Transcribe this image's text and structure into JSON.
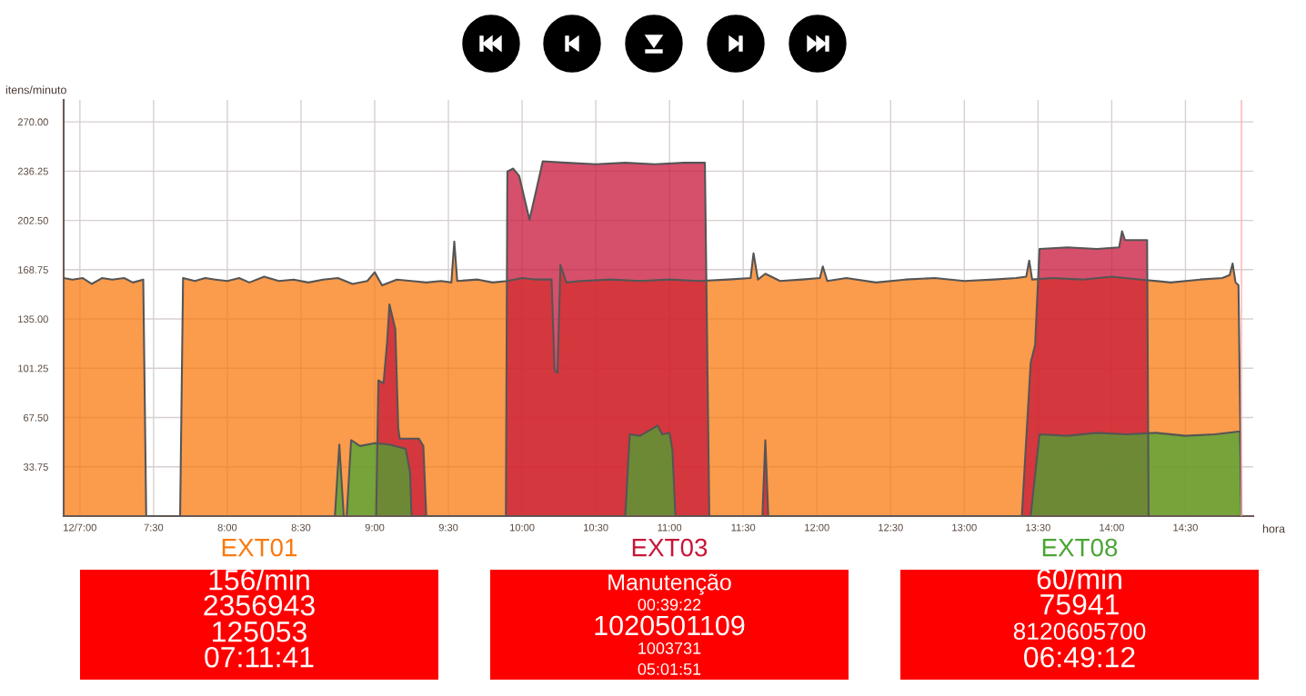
{
  "chart_data": [
    {
      "type": "area",
      "xlabel": "hora",
      "ylabel": "itens/minuto",
      "grid": true,
      "xlim": [
        6.89,
        14.96
      ],
      "ylim": [
        0,
        285
      ],
      "xticks": [
        {
          "value": 7,
          "label": "12/7:00"
        },
        {
          "value": 7.5,
          "label": "7:30"
        },
        {
          "value": 8,
          "label": "8:00"
        },
        {
          "value": 8.5,
          "label": "8:30"
        },
        {
          "value": 9,
          "label": "9:00"
        },
        {
          "value": 9.5,
          "label": "9:30"
        },
        {
          "value": 10,
          "label": "10:00"
        },
        {
          "value": 10.5,
          "label": "10:30"
        },
        {
          "value": 11,
          "label": "11:00"
        },
        {
          "value": 11.5,
          "label": "11:30"
        },
        {
          "value": 12,
          "label": "12:00"
        },
        {
          "value": 12.5,
          "label": "12:30"
        },
        {
          "value": 13,
          "label": "13:00"
        },
        {
          "value": 13.5,
          "label": "13:30"
        },
        {
          "value": 14,
          "label": "14:00"
        },
        {
          "value": 14.5,
          "label": "14:30"
        }
      ],
      "yticks": [
        {
          "value": 33.75,
          "label": "33.75"
        },
        {
          "value": 67.5,
          "label": "67.50"
        },
        {
          "value": 101.25,
          "label": "101.25"
        },
        {
          "value": 135,
          "label": "135.00"
        },
        {
          "value": 168.75,
          "label": "168.75"
        },
        {
          "value": 202.5,
          "label": "202.50"
        },
        {
          "value": 236.25,
          "label": "236.25"
        },
        {
          "value": 270,
          "label": "270.00"
        }
      ],
      "ref_lines": [
        {
          "axis": "x",
          "value": 14.88,
          "color": "#ffb0b0"
        }
      ],
      "series": [
        {
          "name": "EXT01",
          "color": "#f97a10",
          "x": [
            6.89,
            6.95,
            7.02,
            7.08,
            7.15,
            7.22,
            7.3,
            7.36,
            7.43,
            7.45,
            7.68,
            7.7,
            7.78,
            7.85,
            7.92,
            8.0,
            8.08,
            8.15,
            8.25,
            8.35,
            8.45,
            8.55,
            8.65,
            8.75,
            8.85,
            8.95,
            9.0,
            9.05,
            9.15,
            9.25,
            9.35,
            9.45,
            9.52,
            9.54,
            9.56,
            9.7,
            9.8,
            9.9,
            10.0,
            10.1,
            10.2,
            10.22,
            10.24,
            10.26,
            10.3,
            10.4,
            10.6,
            10.8,
            11.0,
            11.2,
            11.4,
            11.55,
            11.57,
            11.6,
            11.65,
            11.75,
            11.9,
            12.02,
            12.04,
            12.07,
            12.2,
            12.4,
            12.6,
            12.8,
            13.0,
            13.2,
            13.35,
            13.42,
            13.44,
            13.46,
            13.6,
            13.8,
            14.0,
            14.2,
            14.4,
            14.6,
            14.75,
            14.8,
            14.82,
            14.84,
            14.86,
            14.88
          ],
          "values": [
            163,
            162,
            163,
            159,
            163,
            162,
            163,
            160,
            162,
            0,
            0,
            163,
            161,
            163,
            162,
            161,
            163,
            160,
            164,
            161,
            162,
            160,
            162,
            163,
            159,
            161,
            167,
            158,
            162,
            161,
            160,
            161,
            160,
            188,
            161,
            162,
            160,
            161,
            163,
            162,
            162,
            100,
            98,
            172,
            160,
            161,
            162,
            161,
            162,
            161,
            162,
            163,
            180,
            162,
            166,
            161,
            162,
            163,
            171,
            161,
            163,
            160,
            162,
            163,
            161,
            162,
            163,
            164,
            175,
            162,
            163,
            162,
            164,
            162,
            160,
            162,
            163,
            165,
            173,
            160,
            158,
            0
          ]
        },
        {
          "name": "EXT03",
          "color": "#c8163a",
          "x": [
            9.01,
            9.025,
            9.06,
            9.085,
            9.1,
            9.14,
            9.16,
            9.17,
            9.3,
            9.33,
            9.35,
            9.89,
            9.9,
            9.94,
            9.98,
            10.05,
            10.1,
            10.14,
            10.3,
            10.5,
            10.7,
            10.9,
            11.1,
            11.24,
            11.27,
            11.63,
            11.65,
            11.67,
            13.39,
            13.45,
            13.48,
            13.51,
            13.7,
            13.9,
            14.05,
            14.07,
            14.09,
            14.24,
            14.25
          ],
          "values": [
            0,
            93,
            91,
            120,
            145,
            128,
            60,
            53,
            53,
            48,
            0,
            0,
            236,
            238,
            233,
            203,
            225,
            243,
            242,
            241,
            242,
            241,
            242,
            242,
            0,
            0,
            52,
            0,
            0,
            105,
            117,
            183,
            184,
            183,
            184,
            195,
            189,
            189,
            0
          ]
        },
        {
          "name": "EXT08",
          "color": "#4aa534",
          "x": [
            8.73,
            8.76,
            8.79,
            8.81,
            8.84,
            8.9,
            9.0,
            9.1,
            9.21,
            9.24,
            9.25,
            10.7,
            10.73,
            10.8,
            10.92,
            10.95,
            11.0,
            11.02,
            11.04,
            13.45,
            13.51,
            13.7,
            13.9,
            14.1,
            14.3,
            14.5,
            14.7,
            14.87,
            14.88
          ],
          "values": [
            0,
            49,
            0,
            0,
            52,
            48,
            50,
            49,
            46,
            30,
            0,
            0,
            56,
            55,
            62,
            56,
            57,
            45,
            0,
            0,
            56,
            55,
            57,
            56,
            57,
            55,
            56,
            58,
            0
          ]
        }
      ]
    },
    {
      "type": "other",
      "color": "#ff0000",
      "annotations": [
        "156/min",
        "2356943",
        "125053",
        "07:11:41"
      ]
    },
    {
      "type": "other",
      "color": "#ff0000",
      "annotations": [
        "Manutenção",
        "00:39:22",
        "1020501109",
        "1003731",
        "05:01:51"
      ]
    },
    {
      "type": "other",
      "color": "#ff0000",
      "annotations": [
        "60/min",
        "75941",
        "8120605700",
        "06:49:12"
      ]
    }
  ]
}
